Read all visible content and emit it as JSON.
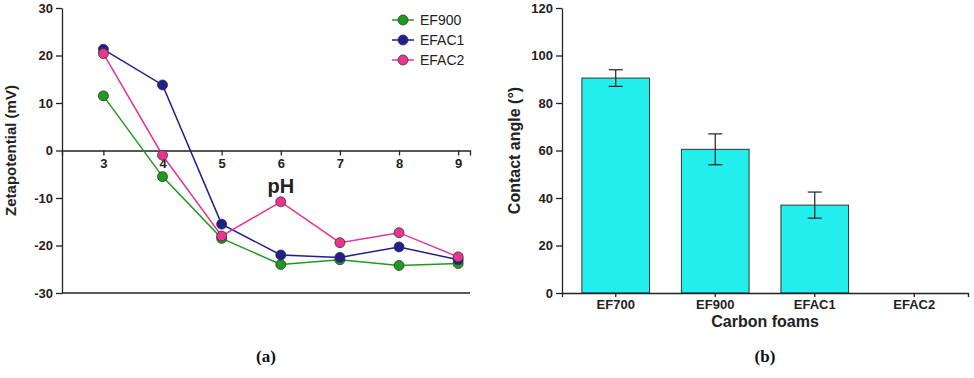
{
  "chart_data": [
    {
      "type": "line",
      "title": "(a)",
      "xlabel": "pH",
      "ylabel": "Zetapotential (mV)",
      "x": [
        3,
        4,
        5,
        6,
        7,
        8,
        9
      ],
      "series": [
        {
          "name": "EF900",
          "color": "#1f9a1f",
          "marker": "circle",
          "values": [
            11.5,
            -5.5,
            -18.5,
            -24,
            -23,
            -24.2,
            -23.8
          ]
        },
        {
          "name": "EFAC1",
          "color": "#1f1f8f",
          "marker": "circle",
          "values": [
            21.3,
            13.8,
            -15.5,
            -22,
            -22.5,
            -20.3,
            -23
          ]
        },
        {
          "name": "EFAC2",
          "color": "#e8358f",
          "marker": "circle",
          "values": [
            20.4,
            -1,
            -18,
            -10.8,
            -19.4,
            -17.3,
            -22.4
          ]
        }
      ],
      "xlim": [
        2.3,
        9.2
      ],
      "xticks": [
        3,
        4,
        5,
        6,
        7,
        8,
        9
      ],
      "ylim": [
        -30,
        30
      ],
      "yticks": [
        -30,
        -20,
        -10,
        0,
        10,
        20,
        30
      ],
      "legend": "upper right"
    },
    {
      "type": "bar",
      "title": "(b)",
      "xlabel": "Carbon foams",
      "ylabel": "Contact angle (°)",
      "categories": [
        "EF700",
        "EF900",
        "EFAC1",
        "EFAC2"
      ],
      "values": [
        90.5,
        60.5,
        37,
        0
      ],
      "errors": [
        3.5,
        6.5,
        5.5,
        0
      ],
      "color": "#22eeee",
      "ylim": [
        0,
        120
      ],
      "yticks": [
        0,
        20,
        40,
        60,
        80,
        100,
        120
      ]
    }
  ]
}
